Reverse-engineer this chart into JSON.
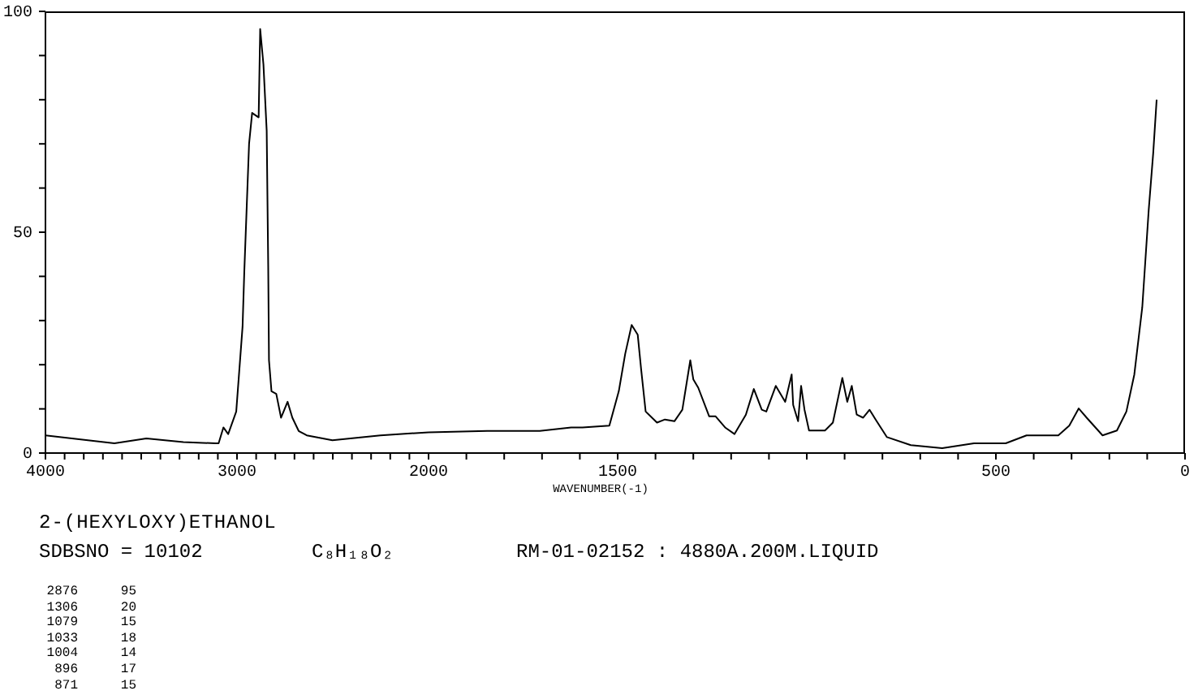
{
  "chart_data": [
    {
      "type": "line",
      "title": "2-(HEXYLOXY)ETHANOL",
      "annotations": [
        "SDBSNO = 10102",
        "C₈H₁₈O₂",
        "RM-01-02152 : 4880A.200M.LIQUID",
        "2876 95",
        "1306 20",
        "1079 15",
        "1033 18",
        "1004 14",
        "896 17",
        "871 15"
      ],
      "x": [
        4000,
        3640,
        3473,
        3280,
        3113,
        3096,
        3071,
        3046,
        3004,
        2971,
        2962,
        2937,
        2921,
        2887,
        2879,
        2862,
        2845,
        2837,
        2833,
        2820,
        2795,
        2770,
        2736,
        2711,
        2678,
        2636,
        2502,
        2251,
        2000
      ],
      "series": [
        {
          "color": "#000000",
          "values": [
            4,
            2.2,
            3.3,
            2.5,
            2.2,
            2.2,
            5.8,
            4.3,
            9.4,
            28.6,
            41,
            70,
            77,
            76,
            96,
            88,
            73,
            42,
            21,
            14,
            13.4,
            8,
            11.6,
            8,
            5,
            4,
            2.9,
            4,
            4.7
          ]
        }
      ],
      "xlim": [
        4000,
        2000
      ],
      "xticks": [
        4000,
        {
          "value": 3900,
          "label": null
        },
        {
          "value": 3800,
          "label": null
        },
        {
          "value": 3700,
          "label": null
        },
        {
          "value": 3600,
          "label": null
        },
        {
          "value": 3500,
          "label": null
        },
        {
          "value": 3400,
          "label": null
        },
        {
          "value": 3300,
          "label": null
        },
        {
          "value": 3200,
          "label": null
        },
        {
          "value": 3100,
          "label": null
        },
        3000,
        {
          "value": 2900,
          "label": null
        },
        {
          "value": 2800,
          "label": null
        },
        {
          "value": 2700,
          "label": null
        },
        {
          "value": 2600,
          "label": null
        },
        {
          "value": 2500,
          "label": null
        },
        {
          "value": 2400,
          "label": null
        },
        {
          "value": 2300,
          "label": null
        },
        {
          "value": 2200,
          "label": null
        },
        {
          "value": 2100,
          "label": null
        },
        2000
      ],
      "ylim": [
        0,
        100
      ],
      "yticks": [
        0,
        {
          "value": 10,
          "label": null
        },
        {
          "value": 20,
          "label": null
        },
        {
          "value": 30,
          "label": null
        },
        {
          "value": 40,
          "label": null
        },
        50,
        {
          "value": 60,
          "label": null
        },
        {
          "value": 70,
          "label": null
        },
        {
          "value": 80,
          "label": null
        },
        {
          "value": 90,
          "label": null
        },
        100
      ]
    },
    {
      "type": "line",
      "xlabel": "WAVENUMBER(-1)",
      "tick_labels": "x",
      "x": [
        2000,
        1845,
        1706,
        1623,
        1593,
        1522,
        1497,
        1480,
        1463,
        1447,
        1438,
        1426,
        1396,
        1375,
        1350,
        1329,
        1308,
        1300,
        1287,
        1258,
        1241,
        1216,
        1191,
        1161,
        1140,
        1119,
        1107,
        1082,
        1057,
        1040,
        1036,
        1023,
        1015,
        1006,
        994,
        952,
        931,
        906,
        893,
        881,
        868,
        851,
        834,
        818,
        788,
        725,
        642,
        558,
        474,
        419,
        335,
        306,
        281,
        260,
        218,
        180,
        155,
        134,
        113,
        96,
        84,
        75
      ],
      "series": [
        {
          "color": "#000000",
          "values": [
            4.7,
            5,
            5,
            5.8,
            5.8,
            6.2,
            14,
            22.5,
            29,
            26.8,
            19,
            9.4,
            6.9,
            7.6,
            7.2,
            9.8,
            21,
            16.7,
            14.8,
            8.3,
            8.3,
            5.8,
            4.3,
            8.7,
            14.5,
            9.8,
            9.4,
            15.2,
            11.6,
            17.8,
            10.9,
            7.2,
            15.2,
            9.8,
            5.1,
            5.1,
            6.9,
            17,
            11.6,
            15.2,
            8.7,
            8,
            9.8,
            7.6,
            3.6,
            1.8,
            1.1,
            2.2,
            2.2,
            4,
            4,
            6.2,
            10.1,
            8,
            4,
            5.1,
            9.4,
            17.8,
            33,
            55,
            68,
            80
          ]
        }
      ],
      "xlim": [
        2000,
        0
      ],
      "xticks": [
        {
          "value": 1900,
          "label": null
        },
        {
          "value": 1800,
          "label": null
        },
        {
          "value": 1700,
          "label": null
        },
        {
          "value": 1600,
          "label": null
        },
        1500,
        {
          "value": 1400,
          "label": null
        },
        {
          "value": 1300,
          "label": null
        },
        {
          "value": 1200,
          "label": null
        },
        {
          "value": 1100,
          "label": null
        },
        {
          "value": 1000,
          "label": null
        },
        {
          "value": 900,
          "label": null
        },
        {
          "value": 800,
          "label": null
        },
        {
          "value": 700,
          "label": null
        },
        {
          "value": 600,
          "label": null
        },
        500,
        {
          "value": 400,
          "label": null
        },
        {
          "value": 300,
          "label": null
        },
        {
          "value": 200,
          "label": null
        },
        {
          "value": 100,
          "label": null
        },
        0
      ],
      "ylim": [
        0,
        100
      ]
    }
  ]
}
